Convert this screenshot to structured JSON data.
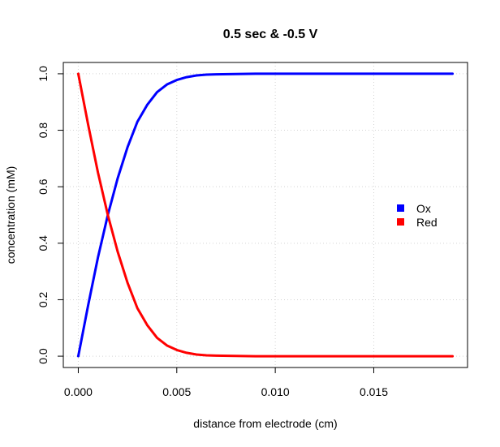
{
  "chart_data": {
    "type": "line",
    "title": "0.5 sec & -0.5 V",
    "xlabel": "distance from electrode (cm)",
    "ylabel": "concentration (mM)",
    "xlim": [
      -0.00076,
      0.01976
    ],
    "ylim": [
      -0.04,
      1.04
    ],
    "xticks": [
      0.0,
      0.005,
      0.01,
      0.015
    ],
    "xtick_labels": [
      "0.000",
      "0.005",
      "0.010",
      "0.015"
    ],
    "yticks": [
      0.0,
      0.2,
      0.4,
      0.6,
      0.8,
      1.0
    ],
    "ytick_labels": [
      "0.0",
      "0.2",
      "0.4",
      "0.6",
      "0.8",
      "1.0"
    ],
    "grid": true,
    "legend_position": "right",
    "x": [
      0.0,
      0.0005,
      0.001,
      0.0015,
      0.002,
      0.0025,
      0.003,
      0.0035,
      0.004,
      0.0045,
      0.005,
      0.0055,
      0.006,
      0.0065,
      0.007,
      0.008,
      0.009,
      0.01,
      0.011,
      0.012,
      0.013,
      0.014,
      0.015,
      0.016,
      0.017,
      0.018,
      0.019
    ],
    "series": [
      {
        "name": "Ox",
        "color": "#0000ff",
        "values": [
          0.0,
          0.18,
          0.35,
          0.5,
          0.63,
          0.74,
          0.83,
          0.89,
          0.935,
          0.962,
          0.978,
          0.988,
          0.994,
          0.997,
          0.998,
          0.999,
          1.0,
          1.0,
          1.0,
          1.0,
          1.0,
          1.0,
          1.0,
          1.0,
          1.0,
          1.0,
          1.0
        ]
      },
      {
        "name": "Red",
        "color": "#ff0000",
        "values": [
          1.0,
          0.82,
          0.65,
          0.5,
          0.37,
          0.26,
          0.17,
          0.11,
          0.065,
          0.038,
          0.022,
          0.012,
          0.006,
          0.003,
          0.002,
          0.001,
          0.0,
          0.0,
          0.0,
          0.0,
          0.0,
          0.0,
          0.0,
          0.0,
          0.0,
          0.0,
          0.0
        ]
      }
    ]
  }
}
